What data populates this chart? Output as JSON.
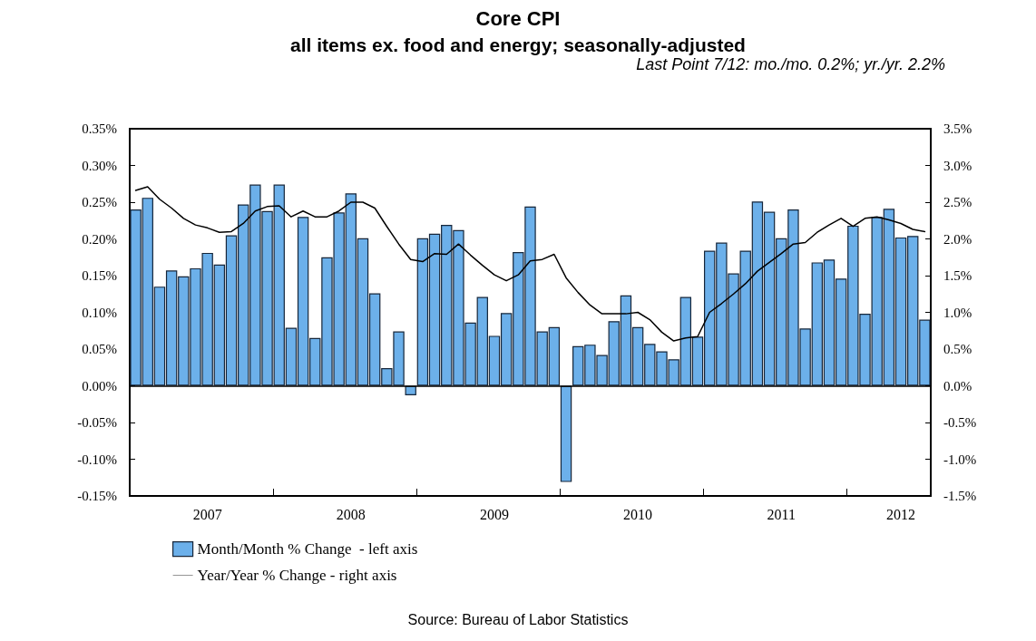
{
  "chart_data": {
    "type": "bar",
    "title": "Core CPI",
    "subtitle": "all items ex. food and energy; seasonally-adjusted",
    "annotations": [
      "Last Point 7/12: mo./mo. 0.2%; yr./yr. 2.2%",
      "Source: Bureau of Labor Statistics"
    ],
    "categories": [
      null,
      null,
      null,
      null,
      null,
      null,
      "2007",
      null,
      null,
      null,
      null,
      null,
      null,
      null,
      null,
      null,
      null,
      null,
      "2008",
      null,
      null,
      null,
      null,
      null,
      null,
      null,
      null,
      null,
      null,
      null,
      "2009",
      null,
      null,
      null,
      null,
      null,
      null,
      null,
      null,
      null,
      null,
      null,
      "2010",
      null,
      null,
      null,
      null,
      null,
      null,
      null,
      null,
      null,
      null,
      null,
      "2011",
      null,
      null,
      null,
      null,
      null,
      null,
      null,
      null,
      null,
      "2012",
      null,
      null
    ],
    "series": [
      {
        "name": "Month/Month % Change  - left axis",
        "color": "#6cb0ea",
        "values": [
          0.24,
          0.256,
          0.135,
          0.157,
          0.149,
          0.16,
          0.181,
          0.165,
          0.205,
          0.247,
          0.274,
          0.238,
          0.274,
          0.079,
          0.23,
          0.065,
          0.175,
          0.236,
          0.262,
          0.201,
          0.126,
          0.024,
          0.074,
          -0.013,
          0.201,
          0.207,
          0.219,
          0.212,
          0.086,
          0.121,
          0.068,
          0.099,
          0.182,
          0.244,
          0.074,
          0.08,
          -0.131,
          0.054,
          0.056,
          0.042,
          0.088,
          0.123,
          0.08,
          0.057,
          0.047,
          0.036,
          0.121,
          0.067,
          0.184,
          0.195,
          0.153,
          0.184,
          0.251,
          0.237,
          0.201,
          0.24,
          0.078,
          0.168,
          0.172,
          0.146,
          0.218,
          0.098,
          0.23,
          0.241,
          0.202,
          0.204,
          0.09
        ]
      },
      {
        "name": "Year/Year % Change - right axis",
        "type": "line",
        "axis": "y2",
        "color": "#000000",
        "values": [
          2.66,
          2.71,
          2.54,
          2.42,
          2.28,
          2.19,
          2.15,
          2.09,
          2.1,
          2.21,
          2.38,
          2.44,
          2.45,
          2.3,
          2.38,
          2.3,
          2.3,
          2.38,
          2.5,
          2.5,
          2.42,
          2.17,
          1.93,
          1.72,
          1.69,
          1.8,
          1.79,
          1.93,
          1.78,
          1.64,
          1.51,
          1.43,
          1.51,
          1.7,
          1.72,
          1.79,
          1.47,
          1.27,
          1.1,
          0.98,
          0.98,
          0.98,
          1.0,
          0.9,
          0.73,
          0.61,
          0.65,
          0.67,
          1.0,
          1.12,
          1.25,
          1.39,
          1.56,
          1.68,
          1.8,
          1.93,
          1.95,
          2.09,
          2.19,
          2.28,
          2.17,
          2.28,
          2.3,
          2.26,
          2.21,
          2.13,
          2.1
        ]
      }
    ],
    "ylim": [
      -0.15,
      0.35
    ],
    "yticks": [
      {
        "value": -0.15,
        "label": "-0.15%"
      },
      {
        "value": -0.1,
        "label": "-0.10%"
      },
      {
        "value": -0.05,
        "label": "-0.05%"
      },
      {
        "value": 0,
        "label": "0.00%"
      },
      {
        "value": 0.05,
        "label": "0.05%"
      },
      {
        "value": 0.1,
        "label": "0.10%"
      },
      {
        "value": 0.15,
        "label": "0.15%"
      },
      {
        "value": 0.2,
        "label": "0.20%"
      },
      {
        "value": 0.25,
        "label": "0.25%"
      },
      {
        "value": 0.3,
        "label": "0.30%"
      },
      {
        "value": 0.35,
        "label": "0.35%"
      }
    ],
    "y2lim": [
      -1.5,
      3.5
    ],
    "y2ticks": [
      {
        "value": -1.5,
        "label": "-1.5%"
      },
      {
        "value": -1.0,
        "label": "-1.0%"
      },
      {
        "value": -0.5,
        "label": "-0.5%"
      },
      {
        "value": 0,
        "label": "0.0%"
      },
      {
        "value": 0.5,
        "label": "0.5%"
      },
      {
        "value": 1.0,
        "label": "1.0%"
      },
      {
        "value": 1.5,
        "label": "1.5%"
      },
      {
        "value": 2.0,
        "label": "2.0%"
      },
      {
        "value": 2.5,
        "label": "2.5%"
      },
      {
        "value": 3.0,
        "label": "3.0%"
      },
      {
        "value": 3.5,
        "label": "3.5%"
      }
    ],
    "ref_lines": [
      {
        "axis": "y",
        "value": 0,
        "color": "#000000",
        "line_style": "solid"
      }
    ],
    "grid": false,
    "legend": "bottom left",
    "marker": "none",
    "line_style": "solid"
  }
}
